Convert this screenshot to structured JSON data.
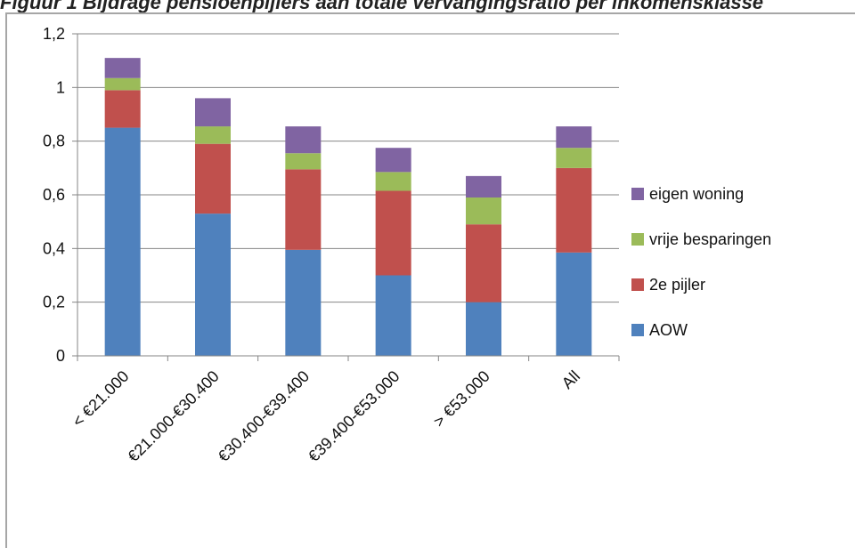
{
  "header": {
    "title": "Figuur 1 Bijdrage pensioenpijlers aan totale vervangingsratio per inkomensklasse"
  },
  "chart_data": {
    "type": "bar",
    "stacked": true,
    "categories": [
      "< €21.000",
      "€21.000-€30.400",
      "€30.400-€39.400",
      "€39.400-€53.000",
      "> €53.000",
      "All"
    ],
    "series": [
      {
        "name": "AOW",
        "color": "#4f81bd",
        "values": [
          0.85,
          0.53,
          0.395,
          0.3,
          0.2,
          0.385
        ]
      },
      {
        "name": "2e pijler",
        "color": "#c0504d",
        "values": [
          0.14,
          0.26,
          0.3,
          0.315,
          0.29,
          0.315
        ]
      },
      {
        "name": "vrije besparingen",
        "color": "#9bbb59",
        "values": [
          0.045,
          0.065,
          0.06,
          0.07,
          0.1,
          0.075
        ]
      },
      {
        "name": "eigen woning",
        "color": "#8064a2",
        "values": [
          0.075,
          0.105,
          0.1,
          0.09,
          0.08,
          0.08
        ]
      }
    ],
    "ylim": [
      0,
      1.2
    ],
    "yticks": [
      "0",
      "0,2",
      "0,4",
      "0,6",
      "0,8",
      "1",
      "1,2"
    ],
    "ytick_values": [
      0,
      0.2,
      0.4,
      0.6,
      0.8,
      1.0,
      1.2
    ],
    "grid": true,
    "legend_position": "right",
    "legend_order": [
      "eigen woning",
      "vrije besparingen",
      "2e pijler",
      "AOW"
    ],
    "gridline_color": "#868686"
  }
}
